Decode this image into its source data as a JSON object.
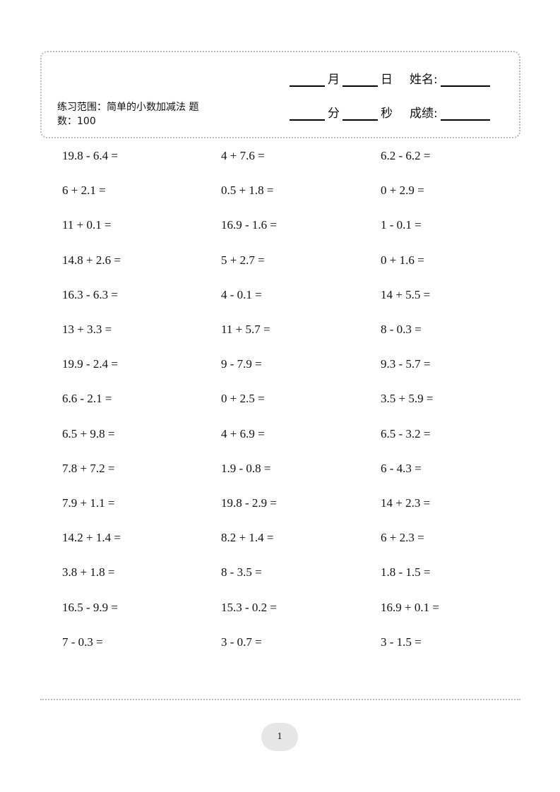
{
  "header": {
    "range_label": "练习范围：简单的小数加减法 题数：100",
    "month": "月",
    "day": "日",
    "name_label": "姓名:",
    "minute": "分",
    "second": "秒",
    "score_label": "成绩:"
  },
  "problems": [
    [
      "19.8 - 6.4 =",
      "4 + 7.6 =",
      "6.2 - 6.2 ="
    ],
    [
      "6 + 2.1 =",
      "0.5 + 1.8 =",
      "0 + 2.9 ="
    ],
    [
      "11 + 0.1 =",
      "16.9 - 1.6 =",
      "1 - 0.1 ="
    ],
    [
      "14.8 + 2.6 =",
      "5 + 2.7 =",
      "0 + 1.6 ="
    ],
    [
      "16.3 - 6.3 =",
      "4 - 0.1 =",
      "14 + 5.5 ="
    ],
    [
      "13 + 3.3 =",
      "11 + 5.7 =",
      "8 - 0.3 ="
    ],
    [
      "19.9 - 2.4 =",
      "9 - 7.9 =",
      "9.3 - 5.7 ="
    ],
    [
      "6.6 - 2.1 =",
      "0 + 2.5 =",
      "3.5 + 5.9 ="
    ],
    [
      "6.5 + 9.8 =",
      "4 + 6.9 =",
      "6.5 - 3.2 ="
    ],
    [
      "7.8 + 7.2 =",
      "1.9 - 0.8 =",
      "6 - 4.3 ="
    ],
    [
      "7.9 + 1.1 =",
      "19.8 - 2.9 =",
      "14 + 2.3 ="
    ],
    [
      "14.2 + 1.4 =",
      "8.2 + 1.4 =",
      "6 + 2.3 ="
    ],
    [
      "3.8 + 1.8 =",
      "8 - 3.5 =",
      "1.8 - 1.5 ="
    ],
    [
      "16.5 - 9.9 =",
      "15.3 - 0.2 =",
      "16.9 + 0.1 ="
    ],
    [
      "7 - 0.3 =",
      "3 - 0.7 =",
      "3 - 1.5 ="
    ]
  ],
  "footer": {
    "page_number": "1"
  }
}
